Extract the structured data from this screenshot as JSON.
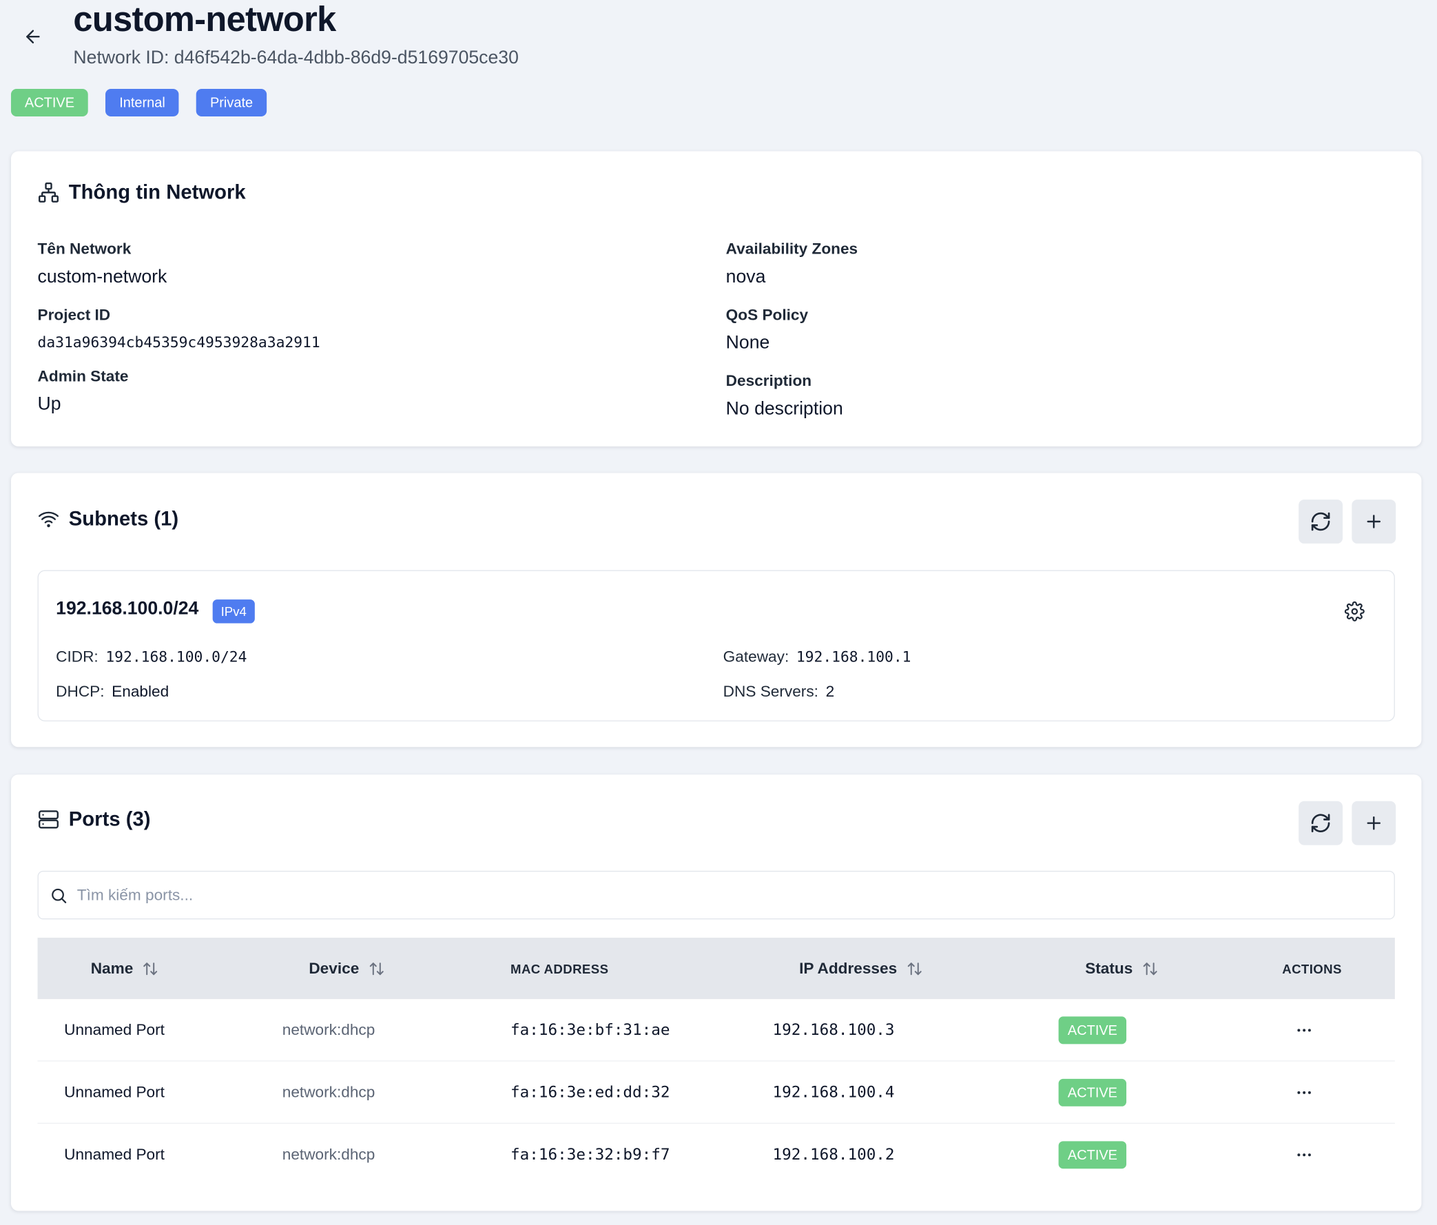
{
  "header": {
    "title": "custom-network",
    "network_id": "Network ID: d46f542b-64da-4dbb-86d9-d5169705ce30",
    "badges": [
      "ACTIVE",
      "Internal",
      "Private"
    ]
  },
  "info": {
    "title": "Thông tin Network",
    "fields": {
      "name_label": "Tên Network",
      "name_value": "custom-network",
      "project_label": "Project ID",
      "project_value": "da31a96394cb45359c4953928a3a2911",
      "admin_label": "Admin State",
      "admin_value": "Up",
      "az_label": "Availability Zones",
      "az_value": "nova",
      "qos_label": "QoS Policy",
      "qos_value": "None",
      "desc_label": "Description",
      "desc_value": "No description"
    }
  },
  "subnets": {
    "title": "Subnets (1)",
    "items": [
      {
        "cidr_title": "192.168.100.0/24",
        "ip_version": "IPv4",
        "cidr_label": "CIDR:",
        "cidr_value": "192.168.100.0/24",
        "dhcp_label": "DHCP:",
        "dhcp_value": "Enabled",
        "gateway_label": "Gateway:",
        "gateway_value": "192.168.100.1",
        "dns_label": "DNS Servers:",
        "dns_value": "2"
      }
    ]
  },
  "ports": {
    "title": "Ports (3)",
    "search_placeholder": "Tìm kiếm ports...",
    "columns": {
      "name": "Name",
      "device": "Device",
      "mac": "MAC ADDRESS",
      "ips": "IP Addresses",
      "status": "Status",
      "actions": "ACTIONS"
    },
    "rows": [
      {
        "name": "Unnamed Port",
        "device": "network:dhcp",
        "mac": "fa:16:3e:bf:31:ae",
        "ip": "192.168.100.3",
        "status": "ACTIVE"
      },
      {
        "name": "Unnamed Port",
        "device": "network:dhcp",
        "mac": "fa:16:3e:ed:dd:32",
        "ip": "192.168.100.4",
        "status": "ACTIVE"
      },
      {
        "name": "Unnamed Port",
        "device": "network:dhcp",
        "mac": "fa:16:3e:32:b9:f7",
        "ip": "192.168.100.2",
        "status": "ACTIVE"
      }
    ]
  },
  "colors": {
    "active_green": "#6fcf86",
    "brand_blue": "#4f7cf0",
    "background": "#f0f3f8"
  },
  "icons": [
    "arrow-left-icon",
    "network-icon",
    "wifi-icon",
    "refresh-icon",
    "plus-icon",
    "gear-icon",
    "server-icon",
    "search-icon",
    "sort-icon",
    "more-horizontal-icon"
  ]
}
